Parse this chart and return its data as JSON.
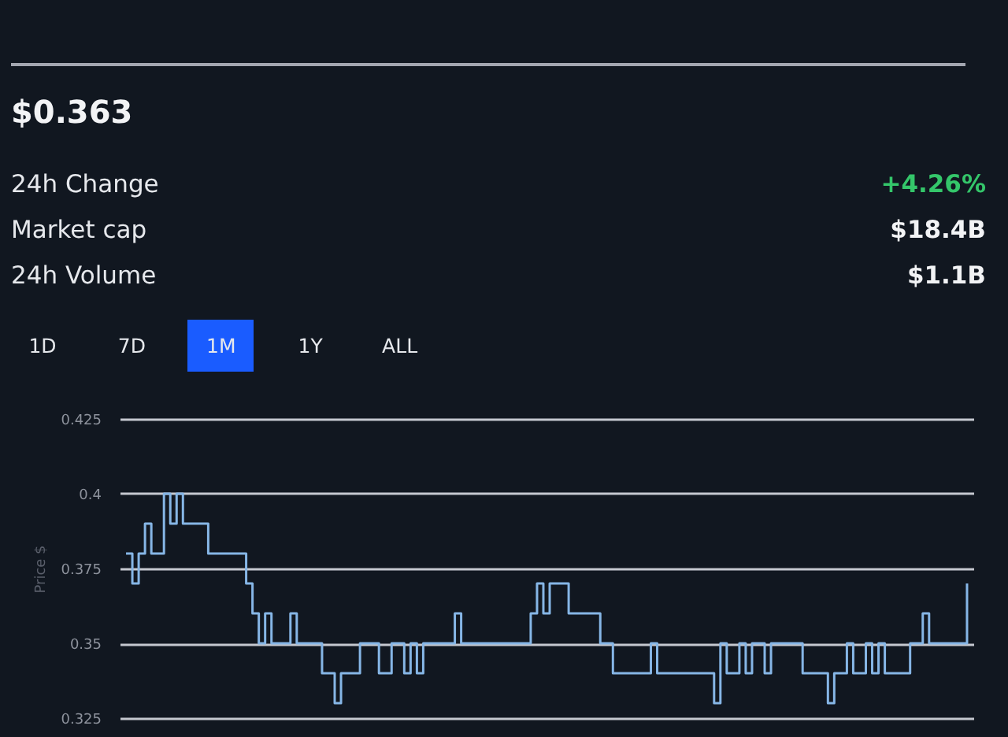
{
  "chart_data": [
    {
      "type": "other",
      "title": "$0.363",
      "annotations": [
        "24h Change",
        "+4.26%",
        "Market cap",
        "$18.4B",
        "24h Volume",
        "$1.1B",
        "1D",
        "7D",
        "1M",
        "1Y",
        "ALL"
      ]
    },
    {
      "type": "step",
      "ylabel": "Price $",
      "ylim": [
        0.325,
        0.425
      ],
      "yticks": [
        0.325,
        0.35,
        0.375,
        0.4,
        0.425
      ],
      "grid": "y",
      "tick_labels": "y",
      "categories": [
        null,
        null,
        null,
        null,
        null,
        null,
        null,
        null,
        null,
        null,
        null,
        null,
        null,
        null,
        null,
        null,
        null,
        null,
        null,
        null,
        null,
        null,
        null,
        null,
        null,
        null,
        null,
        null,
        null,
        null,
        null,
        null,
        null,
        null,
        null,
        null,
        null,
        null,
        null,
        null,
        null,
        null,
        null,
        null,
        null,
        null,
        null,
        null,
        null,
        null,
        null,
        null,
        null,
        null,
        null,
        null,
        null,
        null,
        null,
        null,
        null,
        null,
        null,
        null,
        null,
        null,
        null,
        null,
        null,
        null,
        null,
        null,
        null,
        null,
        null,
        null,
        null,
        null,
        null,
        null,
        null,
        null,
        null,
        null,
        null,
        null,
        null,
        null,
        null,
        null,
        null,
        null,
        null,
        null,
        null,
        null,
        null,
        null,
        null,
        null,
        null,
        null,
        null,
        null,
        null,
        null,
        null,
        null,
        null,
        null,
        null,
        null,
        null,
        null,
        null,
        null,
        null,
        null,
        null,
        null,
        null,
        null,
        null,
        null,
        null,
        null,
        null,
        null,
        null,
        null,
        null,
        null,
        null,
        null
      ],
      "series": [
        {
          "color": "#86b6e6",
          "values": [
            0.38,
            0.37,
            0.38,
            0.39,
            0.38,
            0.38,
            0.4,
            0.39,
            0.4,
            0.39,
            0.39,
            0.39,
            0.39,
            0.38,
            0.38,
            0.38,
            0.38,
            0.38,
            0.38,
            0.37,
            0.36,
            0.35,
            0.36,
            0.35,
            0.35,
            0.35,
            0.36,
            0.35,
            0.35,
            0.35,
            0.35,
            0.34,
            0.34,
            0.33,
            0.34,
            0.34,
            0.34,
            0.35,
            0.35,
            0.35,
            0.34,
            0.34,
            0.35,
            0.35,
            0.34,
            0.35,
            0.34,
            0.35,
            0.35,
            0.35,
            0.35,
            0.35,
            0.36,
            0.35,
            0.35,
            0.35,
            0.35,
            0.35,
            0.35,
            0.35,
            0.35,
            0.35,
            0.35,
            0.35,
            0.36,
            0.37,
            0.36,
            0.37,
            0.37,
            0.37,
            0.36,
            0.36,
            0.36,
            0.36,
            0.36,
            0.35,
            0.35,
            0.34,
            0.34,
            0.34,
            0.34,
            0.34,
            0.34,
            0.35,
            0.34,
            0.34,
            0.34,
            0.34,
            0.34,
            0.34,
            0.34,
            0.34,
            0.34,
            0.33,
            0.35,
            0.34,
            0.34,
            0.35,
            0.34,
            0.35,
            0.35,
            0.34,
            0.35,
            0.35,
            0.35,
            0.35,
            0.35,
            0.34,
            0.34,
            0.34,
            0.34,
            0.33,
            0.34,
            0.34,
            0.35,
            0.34,
            0.34,
            0.35,
            0.34,
            0.35,
            0.34,
            0.34,
            0.34,
            0.34,
            0.35,
            0.35,
            0.36,
            0.35,
            0.35,
            0.35,
            0.35,
            0.35,
            0.35,
            0.37
          ]
        }
      ]
    }
  ]
}
